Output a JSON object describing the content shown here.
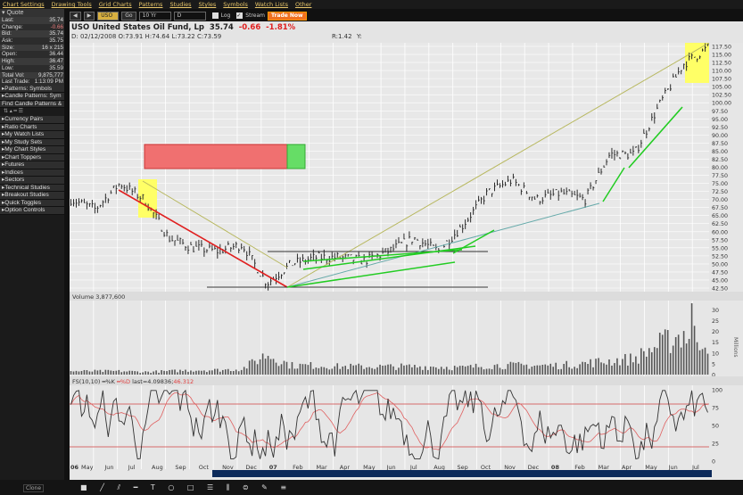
{
  "menu": [
    "Chart Settings",
    "Drawing Tools",
    "Grid Charts",
    "Patterns",
    "Studies",
    "Styles",
    "Symbols",
    "Watch Lists",
    "Other"
  ],
  "quote": {
    "title": "Quote",
    "rows": [
      {
        "label": "Last:",
        "value": "35.74"
      },
      {
        "label": "Change:",
        "value": "-0.66"
      },
      {
        "label": "Bid:",
        "value": "35.74"
      },
      {
        "label": "Ask:",
        "value": "35.75"
      },
      {
        "label": "Size:",
        "value": "16 x 215"
      },
      {
        "label": "Open:",
        "value": "36.44"
      },
      {
        "label": "High:",
        "value": "36.47"
      },
      {
        "label": "Low:",
        "value": "35.59"
      },
      {
        "label": "Total Vol:",
        "value": "9,875,777"
      },
      {
        "label": "Last Trade:",
        "value": "1:13:09 PM"
      }
    ]
  },
  "left_sections": [
    "Patterns: Symbols",
    "Candle Patterns: Sym",
    "Find Candle Patterns &"
  ],
  "left_sections2": [
    "Currency Pairs",
    "Ratio Charts",
    "My Watch Lists",
    "My Study Sets",
    "My Chart Styles",
    "Chart Toppers",
    "Futures",
    "Indices",
    "Sectors",
    "Technical Studies",
    "Breakout Studies",
    "Quick Toggles",
    "Option Controls"
  ],
  "toolbar": {
    "symbol": "USO",
    "go": "Go",
    "period": "10 Yr",
    "interval": "D",
    "log": "Log",
    "stream": "Stream",
    "stream_checked": true,
    "log_checked": false,
    "trade_now": "Trade Now"
  },
  "header": {
    "name": "USO United States Oil Fund, Lp",
    "last": "35.74",
    "change": "-0.66",
    "pct": "-1.81%",
    "ohlc": "D: 02/12/2008 O:73.91 H:74.64 L:73.22 C:73.59",
    "r": "R:1.42",
    "y": "Y:"
  },
  "colors": {
    "up": "#2a2a2a",
    "red": "#e02020",
    "green": "#22cc22",
    "highlight": "#ffff66",
    "olive": "#b8b860"
  },
  "chart_data": [
    {
      "type": "ohlc",
      "title": "USO United States Oil Fund, Lp",
      "ylim": [
        42.5,
        117.5
      ],
      "yticks": [
        "117.50",
        "115.00",
        "112.50",
        "110.00",
        "107.50",
        "105.00",
        "102.50",
        "100.00",
        "97.50",
        "95.00",
        "92.50",
        "90.00",
        "87.50",
        "85.00",
        "82.50",
        "80.00",
        "77.50",
        "75.00",
        "72.50",
        "70.00",
        "67.50",
        "65.00",
        "62.50",
        "60.00",
        "57.50",
        "55.00",
        "52.50",
        "50.00",
        "47.50",
        "45.00",
        "42.50"
      ],
      "x": [
        "2006-05",
        "2006-06",
        "2006-07",
        "2006-08",
        "2006-09",
        "2006-10",
        "2006-11",
        "2006-12",
        "2007-01",
        "2007-02",
        "2007-03",
        "2007-04",
        "2007-05",
        "2007-06",
        "2007-07",
        "2007-08",
        "2007-09",
        "2007-10",
        "2007-11",
        "2007-12",
        "2008-01",
        "2008-02",
        "2008-03",
        "2008-04",
        "2008-05",
        "2008-06",
        "2008-07"
      ],
      "close": [
        70,
        67,
        75,
        70,
        58,
        55,
        54,
        56,
        44,
        50,
        52,
        52,
        51,
        54,
        58,
        54,
        62,
        72,
        76,
        70,
        72,
        70,
        84,
        84,
        99,
        112,
        117
      ]
    },
    {
      "type": "bar",
      "title": "Volume 3,877,600",
      "ylabel": "Millions",
      "yticks": [
        "30",
        "25",
        "20",
        "15",
        "10",
        "5",
        "0"
      ],
      "ylim": [
        0,
        33
      ],
      "x": [
        "2006-05",
        "2006-06",
        "2006-07",
        "2006-08",
        "2006-09",
        "2006-10",
        "2006-11",
        "2006-12",
        "2007-01",
        "2007-02",
        "2007-03",
        "2007-04",
        "2007-05",
        "2007-06",
        "2007-07",
        "2007-08",
        "2007-09",
        "2007-10",
        "2007-11",
        "2007-12",
        "2008-01",
        "2008-02",
        "2008-03",
        "2008-04",
        "2008-05",
        "2008-06",
        "2008-07"
      ],
      "values": [
        1.5,
        1.5,
        1.5,
        1.2,
        1.5,
        2,
        2,
        2.5,
        9,
        4,
        4,
        3.5,
        3.5,
        3.5,
        3.5,
        3.5,
        3,
        4,
        4,
        4,
        4,
        5,
        6,
        7,
        13,
        18,
        15
      ]
    },
    {
      "type": "line",
      "title": "FS(10,10)",
      "series_labels": [
        "%K",
        "%D"
      ],
      "last_k": "last=4.09836",
      "last_d": "46.312",
      "yticks": [
        "100",
        "75",
        "50",
        "25",
        "0"
      ],
      "ylim": [
        0,
        100
      ],
      "levels": [
        80,
        20
      ]
    }
  ],
  "xaxis": [
    {
      "t": "06",
      "b": true
    },
    {
      "t": "May"
    },
    {
      "t": "Jun"
    },
    {
      "t": "Jul"
    },
    {
      "t": "Aug"
    },
    {
      "t": "Sep"
    },
    {
      "t": "Oct"
    },
    {
      "t": "Nov"
    },
    {
      "t": "Dec"
    },
    {
      "t": "07",
      "b": true
    },
    {
      "t": "Feb"
    },
    {
      "t": "Mar"
    },
    {
      "t": "Apr"
    },
    {
      "t": "May"
    },
    {
      "t": "Jun"
    },
    {
      "t": "Jul"
    },
    {
      "t": "Aug"
    },
    {
      "t": "Sep"
    },
    {
      "t": "Oct"
    },
    {
      "t": "Nov"
    },
    {
      "t": "Dec"
    },
    {
      "t": "08",
      "b": true
    },
    {
      "t": "Feb"
    },
    {
      "t": "Mar"
    },
    {
      "t": "Apr"
    },
    {
      "t": "May"
    },
    {
      "t": "Jun"
    },
    {
      "t": "Jul"
    }
  ],
  "bottom": {
    "clone": "Clone"
  }
}
